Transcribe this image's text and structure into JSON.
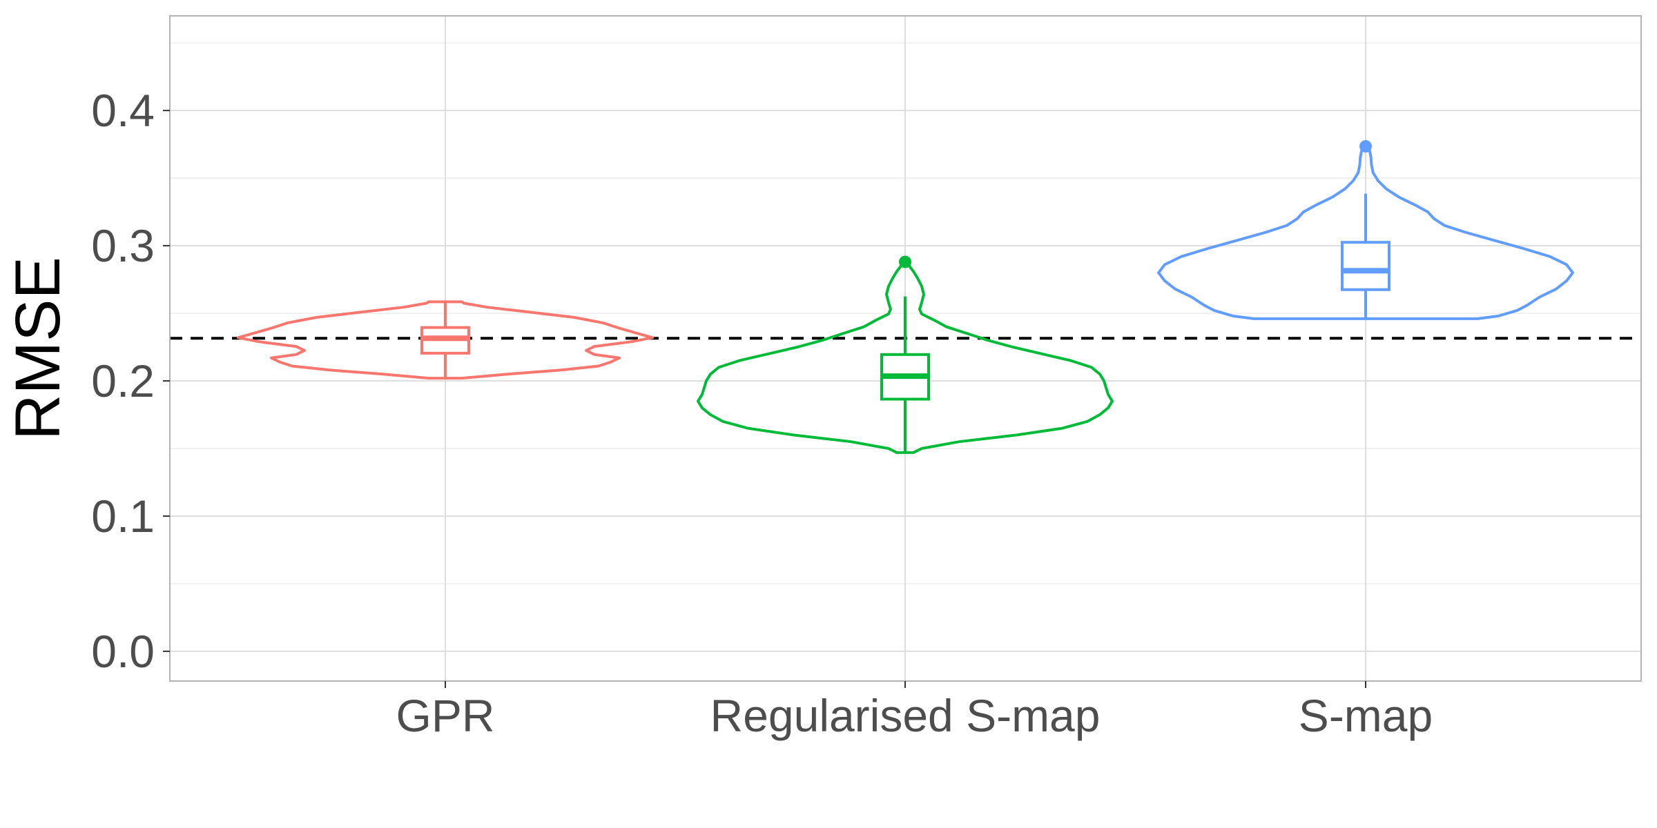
{
  "chart_data": {
    "type": "violin",
    "ylabel": "RMSE",
    "xlabel": "",
    "ylim": [
      -0.022,
      0.47
    ],
    "y_ticks": [
      0.0,
      0.1,
      0.2,
      0.3,
      0.4
    ],
    "y_tick_labels": [
      "0.0",
      "0.1",
      "0.2",
      "0.3",
      "0.4"
    ],
    "categories": [
      "GPR",
      "Regularised S-map",
      "S-map"
    ],
    "reference_line": {
      "y": 0.2315,
      "style": "dashed",
      "color": "#000000"
    },
    "grid": true,
    "series": [
      {
        "category": "GPR",
        "color": "#F8766D",
        "box": {
          "min": 0.202,
          "q1": 0.2205,
          "median": 0.2315,
          "q3": 0.2395,
          "max": 0.2585
        },
        "outliers": [],
        "violin": [
          [
            0.202,
            0.04
          ],
          [
            0.205,
            0.15
          ],
          [
            0.208,
            0.28
          ],
          [
            0.211,
            0.37
          ],
          [
            0.214,
            0.4
          ],
          [
            0.217,
            0.42
          ],
          [
            0.2195,
            0.36
          ],
          [
            0.2225,
            0.34
          ],
          [
            0.2255,
            0.36
          ],
          [
            0.229,
            0.45
          ],
          [
            0.232,
            0.5
          ],
          [
            0.2355,
            0.46
          ],
          [
            0.239,
            0.42
          ],
          [
            0.243,
            0.38
          ],
          [
            0.247,
            0.31
          ],
          [
            0.251,
            0.2
          ],
          [
            0.2545,
            0.1
          ],
          [
            0.2575,
            0.045
          ],
          [
            0.2585,
            0.04
          ]
        ]
      },
      {
        "category": "Regularised S-map",
        "color": "#00BA38",
        "box": {
          "min": 0.147,
          "q1": 0.1865,
          "median": 0.2035,
          "q3": 0.2195,
          "max": 0.2625
        },
        "outliers": [
          0.288
        ],
        "violin": [
          [
            0.147,
            0.02
          ],
          [
            0.15,
            0.04
          ],
          [
            0.155,
            0.13
          ],
          [
            0.16,
            0.27
          ],
          [
            0.165,
            0.38
          ],
          [
            0.17,
            0.44
          ],
          [
            0.175,
            0.47
          ],
          [
            0.18,
            0.49
          ],
          [
            0.185,
            0.5
          ],
          [
            0.19,
            0.49
          ],
          [
            0.195,
            0.485
          ],
          [
            0.2,
            0.48
          ],
          [
            0.205,
            0.47
          ],
          [
            0.21,
            0.45
          ],
          [
            0.215,
            0.4
          ],
          [
            0.22,
            0.33
          ],
          [
            0.225,
            0.26
          ],
          [
            0.23,
            0.2
          ],
          [
            0.235,
            0.15
          ],
          [
            0.24,
            0.1
          ],
          [
            0.245,
            0.07
          ],
          [
            0.2495,
            0.04
          ],
          [
            0.253,
            0.035
          ],
          [
            0.258,
            0.04
          ],
          [
            0.264,
            0.045
          ],
          [
            0.27,
            0.04
          ],
          [
            0.276,
            0.03
          ],
          [
            0.281,
            0.02
          ],
          [
            0.285,
            0.01
          ],
          [
            0.288,
            0.004
          ]
        ]
      },
      {
        "category": "S-map",
        "color": "#619CFF",
        "box": {
          "min": 0.246,
          "q1": 0.2675,
          "median": 0.2815,
          "q3": 0.3025,
          "max": 0.3385
        },
        "outliers": [
          0.3735
        ],
        "violin": [
          [
            0.246,
            0.27
          ],
          [
            0.248,
            0.32
          ],
          [
            0.252,
            0.365
          ],
          [
            0.256,
            0.39
          ],
          [
            0.262,
            0.42
          ],
          [
            0.268,
            0.46
          ],
          [
            0.274,
            0.485
          ],
          [
            0.28,
            0.5
          ],
          [
            0.286,
            0.485
          ],
          [
            0.292,
            0.445
          ],
          [
            0.298,
            0.38
          ],
          [
            0.304,
            0.31
          ],
          [
            0.31,
            0.24
          ],
          [
            0.315,
            0.19
          ],
          [
            0.32,
            0.165
          ],
          [
            0.325,
            0.15
          ],
          [
            0.33,
            0.12
          ],
          [
            0.336,
            0.08
          ],
          [
            0.342,
            0.05
          ],
          [
            0.348,
            0.03
          ],
          [
            0.354,
            0.018
          ],
          [
            0.36,
            0.014
          ],
          [
            0.365,
            0.013
          ],
          [
            0.37,
            0.01
          ],
          [
            0.3735,
            0.003
          ]
        ]
      }
    ]
  }
}
